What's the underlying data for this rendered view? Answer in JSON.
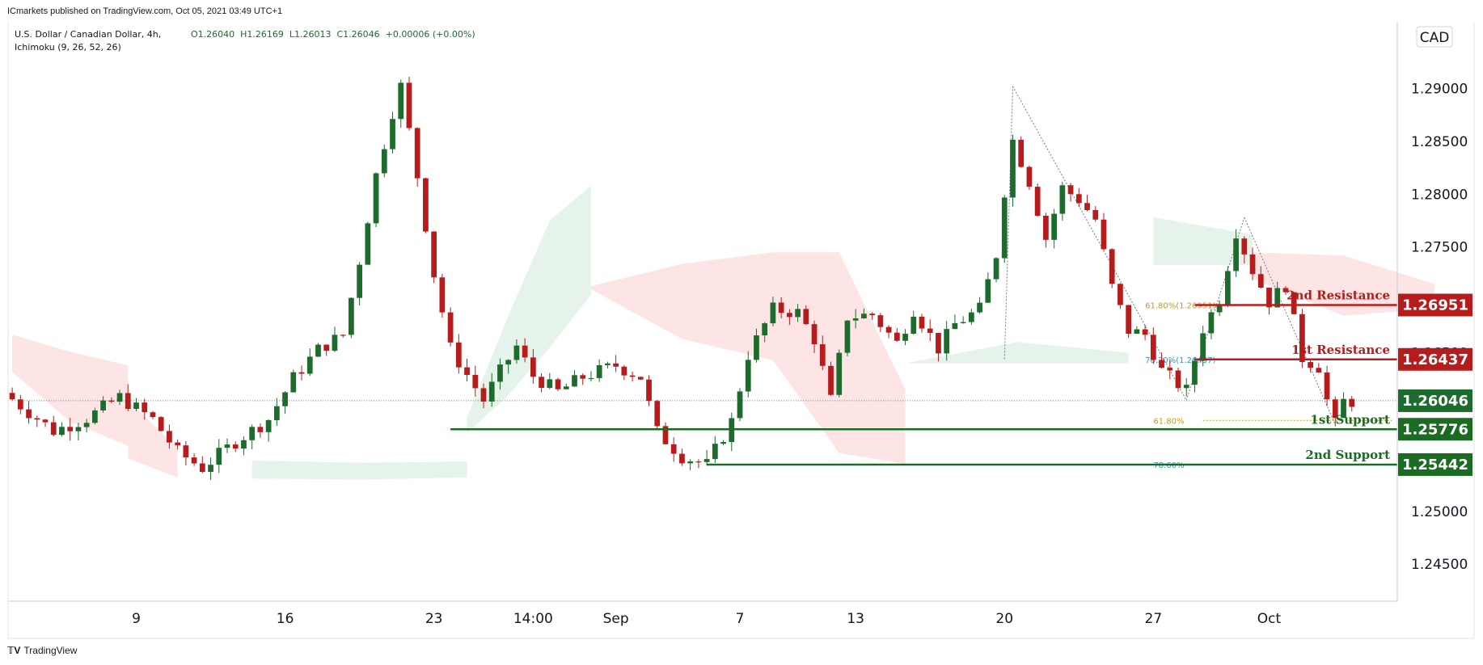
{
  "header": {
    "published_line": "ICmarkets published on TradingView.com, Oct 05, 2021 03:49 UTC+1",
    "symbol_line": "U.S. Dollar / Canadian Dollar, 4h,",
    "indicator_line": "Ichimoku (9, 26, 52, 26)",
    "ohlc_line": "O1.26040  H1.26169  L1.26013  C1.26046  +0.00006 (+0.00%)"
  },
  "currency_badge": "CAD",
  "footer": {
    "brand": "TradingView"
  },
  "chart_data": {
    "type": "candlestick",
    "title": "",
    "timeframe": "4h",
    "y_axis": {
      "ticks": [
        1.245,
        1.25,
        1.255,
        1.26,
        1.265,
        1.27,
        1.275,
        1.28,
        1.285,
        1.29
      ],
      "tick_labels": [
        "1.24500",
        "1.25000",
        "1.25500",
        "1.26000",
        "1.26500",
        "1.27000",
        "1.27500",
        "1.28000",
        "1.28500",
        "1.29000"
      ],
      "range": [
        1.2415,
        1.2963
      ]
    },
    "x_axis": {
      "tick_labels": [
        "9",
        "16",
        "23",
        "14:00",
        "Sep",
        "7",
        "13",
        "20",
        "27",
        "Oct"
      ],
      "tick_bars": [
        15,
        33,
        51,
        63,
        73,
        88,
        102,
        120,
        138,
        152
      ]
    },
    "bars_total": 168,
    "price_path": [
      [
        0,
        1.2612
      ],
      [
        6,
        1.2576
      ],
      [
        10,
        1.2588
      ],
      [
        14,
        1.2608
      ],
      [
        18,
        1.2587
      ],
      [
        21,
        1.2556
      ],
      [
        24,
        1.2541
      ],
      [
        28,
        1.2566
      ],
      [
        32,
        1.2587
      ],
      [
        35,
        1.2626
      ],
      [
        38,
        1.2653
      ],
      [
        41,
        1.2667
      ],
      [
        43,
        1.2737
      ],
      [
        45,
        1.2818
      ],
      [
        47,
        1.2878
      ],
      [
        48,
        1.2902
      ],
      [
        50,
        1.2817
      ],
      [
        52,
        1.2724
      ],
      [
        54,
        1.2654
      ],
      [
        56,
        1.2629
      ],
      [
        58,
        1.2605
      ],
      [
        60,
        1.2632
      ],
      [
        62,
        1.2656
      ],
      [
        64,
        1.2628
      ],
      [
        67,
        1.2613
      ],
      [
        70,
        1.2627
      ],
      [
        74,
        1.2638
      ],
      [
        77,
        1.2627
      ],
      [
        79,
        1.2575
      ],
      [
        82,
        1.2552
      ],
      [
        85,
        1.2544
      ],
      [
        88,
        1.2585
      ],
      [
        90,
        1.2648
      ],
      [
        93,
        1.2691
      ],
      [
        96,
        1.2688
      ],
      [
        98,
        1.2663
      ],
      [
        100,
        1.2605
      ],
      [
        102,
        1.2684
      ],
      [
        105,
        1.2686
      ],
      [
        108,
        1.2659
      ],
      [
        110,
        1.2691
      ],
      [
        113,
        1.2654
      ],
      [
        115,
        1.2677
      ],
      [
        118,
        1.2691
      ],
      [
        120,
        1.2743
      ],
      [
        121,
        1.2803
      ],
      [
        122,
        1.2851
      ],
      [
        124,
        1.2812
      ],
      [
        126,
        1.2758
      ],
      [
        128,
        1.2806
      ],
      [
        130,
        1.2795
      ],
      [
        132,
        1.2776
      ],
      [
        134,
        1.2712
      ],
      [
        136,
        1.2671
      ],
      [
        138,
        1.2667
      ],
      [
        140,
        1.2633
      ],
      [
        143,
        1.2614
      ],
      [
        145,
        1.2673
      ],
      [
        147,
        1.2701
      ],
      [
        149,
        1.2765
      ],
      [
        151,
        1.2728
      ],
      [
        153,
        1.2698
      ],
      [
        155,
        1.2714
      ],
      [
        157,
        1.2645
      ],
      [
        159,
        1.2637
      ],
      [
        160,
        1.2605
      ],
      [
        161,
        1.2582
      ],
      [
        162,
        1.2604
      ]
    ],
    "cloud_segments": [
      {
        "color": "red",
        "from": 0,
        "to": 14,
        "top": [
          1.2667,
          1.2651,
          1.2638
        ],
        "bottom": [
          1.2632,
          1.2585,
          1.2562
        ]
      },
      {
        "color": "red",
        "from": 14,
        "to": 20,
        "top": [
          1.2605,
          1.256
        ],
        "bottom": [
          1.255,
          1.2532
        ]
      },
      {
        "color": "green",
        "from": 29,
        "to": 55,
        "top": [
          1.2548,
          1.2546,
          1.2547
        ],
        "bottom": [
          1.2531,
          1.253,
          1.2532
        ]
      },
      {
        "color": "green",
        "from": 55,
        "to": 70,
        "top": [
          1.2589,
          1.2685,
          1.2775,
          1.2808
        ],
        "bottom": [
          1.2574,
          1.261,
          1.2655,
          1.2705
        ]
      },
      {
        "color": "red",
        "from": 70,
        "to": 92,
        "top": [
          1.2713,
          1.2734,
          1.2745
        ],
        "bottom": [
          1.271,
          1.2663,
          1.2643
        ]
      },
      {
        "color": "red",
        "from": 92,
        "to": 108,
        "top": [
          1.2745,
          1.2745,
          1.2615
        ],
        "bottom": [
          1.2643,
          1.2555,
          1.2545
        ]
      },
      {
        "color": "green",
        "from": 108,
        "to": 135,
        "top": [
          1.264,
          1.266,
          1.265
        ],
        "bottom": [
          1.264,
          1.264,
          1.264
        ]
      },
      {
        "color": "green",
        "from": 138,
        "to": 150,
        "top": [
          1.2778,
          1.2762
        ],
        "bottom": [
          1.2733,
          1.2733
        ]
      },
      {
        "color": "red",
        "from": 150,
        "to": 172,
        "top": [
          1.2745,
          1.2742,
          1.2715
        ],
        "bottom": [
          1.272,
          1.2685,
          1.2692
        ]
      }
    ],
    "levels": [
      {
        "name": "2nd Resistance",
        "price": "1.26951",
        "kind": "resistance"
      },
      {
        "name": "1st Resistance",
        "price": "1.26437",
        "kind": "resistance"
      },
      {
        "name": "1st Support",
        "price": "1.25776",
        "kind": "support"
      },
      {
        "name": "2nd Support",
        "price": "1.25442",
        "kind": "support"
      }
    ],
    "last_price": "1.26046",
    "fib_labels": [
      {
        "text": "61.80%(1.26951)",
        "price": 1.26951,
        "color": "#c99a12"
      },
      {
        "text": "78.20%(1.26437)",
        "price": 1.26437,
        "color": "#2d9bd6"
      },
      {
        "text": "61.80%",
        "price": 1.2586,
        "color": "#c99a12"
      },
      {
        "text": "78.60%",
        "price": 1.25442,
        "color": "#2d9bd6"
      }
    ],
    "colors": {
      "bull": "#1e6b2e",
      "bear": "#b71c1c",
      "cloud_green": "#e6f3ea",
      "cloud_red": "#fde5e5",
      "resistance": "#b71c1c",
      "support": "#1b6b22"
    },
    "grid": false,
    "legend": "none"
  }
}
